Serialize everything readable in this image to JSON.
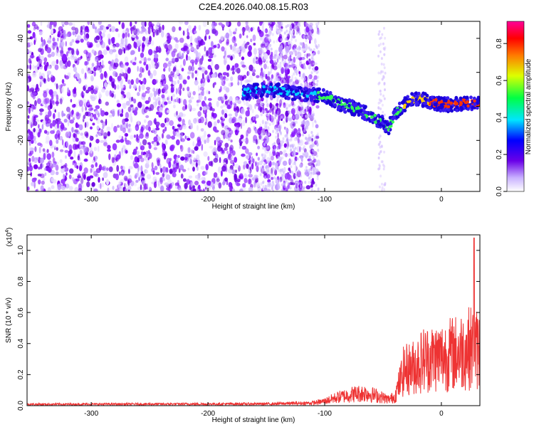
{
  "title": "C2E4.2026.040.08.15.R03",
  "chart_data": [
    {
      "type": "heatmap",
      "panel": "top",
      "xlabel": "Height of straight line (km)",
      "ylabel": "Frequency (Hz)",
      "xlim": [
        -355,
        33
      ],
      "ylim": [
        -50,
        50
      ],
      "xticks": [
        -300,
        -200,
        -100,
        0
      ],
      "yticks": [
        -40,
        -20,
        0,
        20,
        40
      ],
      "colorbar": {
        "label": "Normalized spectral amplitude",
        "range": [
          0.0,
          0.92
        ],
        "ticks": [
          0.0,
          0.2,
          0.4,
          0.6,
          0.8
        ]
      },
      "signal_track": {
        "x": [
          -170,
          -150,
          -135,
          -120,
          -100,
          -85,
          -70,
          -55,
          -45,
          -38,
          -30,
          -20,
          -10,
          0,
          10,
          20,
          33
        ],
        "freq": [
          8,
          10,
          9,
          7,
          6,
          1,
          -2,
          -8,
          -12,
          -3,
          2,
          5,
          3,
          1,
          1,
          2,
          2
        ],
        "amplitude": [
          0.35,
          0.4,
          0.42,
          0.45,
          0.5,
          0.5,
          0.55,
          0.5,
          0.55,
          0.5,
          0.65,
          0.75,
          0.8,
          0.85,
          0.88,
          0.88,
          0.88
        ]
      }
    },
    {
      "type": "line",
      "panel": "bottom",
      "xlabel": "Height of straight line (km)",
      "ylabel": "SNR (10 * v/v)",
      "y_multiplier": "(x10",
      "y_multiplier_exp": "4",
      "y_multiplier_close": ")",
      "xlim": [
        -355,
        33
      ],
      "ylim": [
        0,
        1.1
      ],
      "xticks": [
        -300,
        -200,
        -100,
        0
      ],
      "yticks": [
        0.0,
        0.2,
        0.4,
        0.6,
        0.8,
        1.0
      ],
      "series": [
        {
          "name": "SNR",
          "color": "#ee3333",
          "envelope_x": [
            -355,
            -150,
            -110,
            -100,
            -90,
            -75,
            -65,
            -55,
            -45,
            -40,
            -32,
            -25,
            -15,
            0,
            15,
            25,
            33
          ],
          "envelope_y": [
            0.015,
            0.02,
            0.03,
            0.05,
            0.09,
            0.13,
            0.14,
            0.11,
            0.07,
            0.1,
            0.4,
            0.42,
            0.52,
            0.55,
            0.6,
            0.65,
            0.62
          ],
          "peak_x": 28,
          "peak_y": 1.08
        }
      ]
    }
  ]
}
